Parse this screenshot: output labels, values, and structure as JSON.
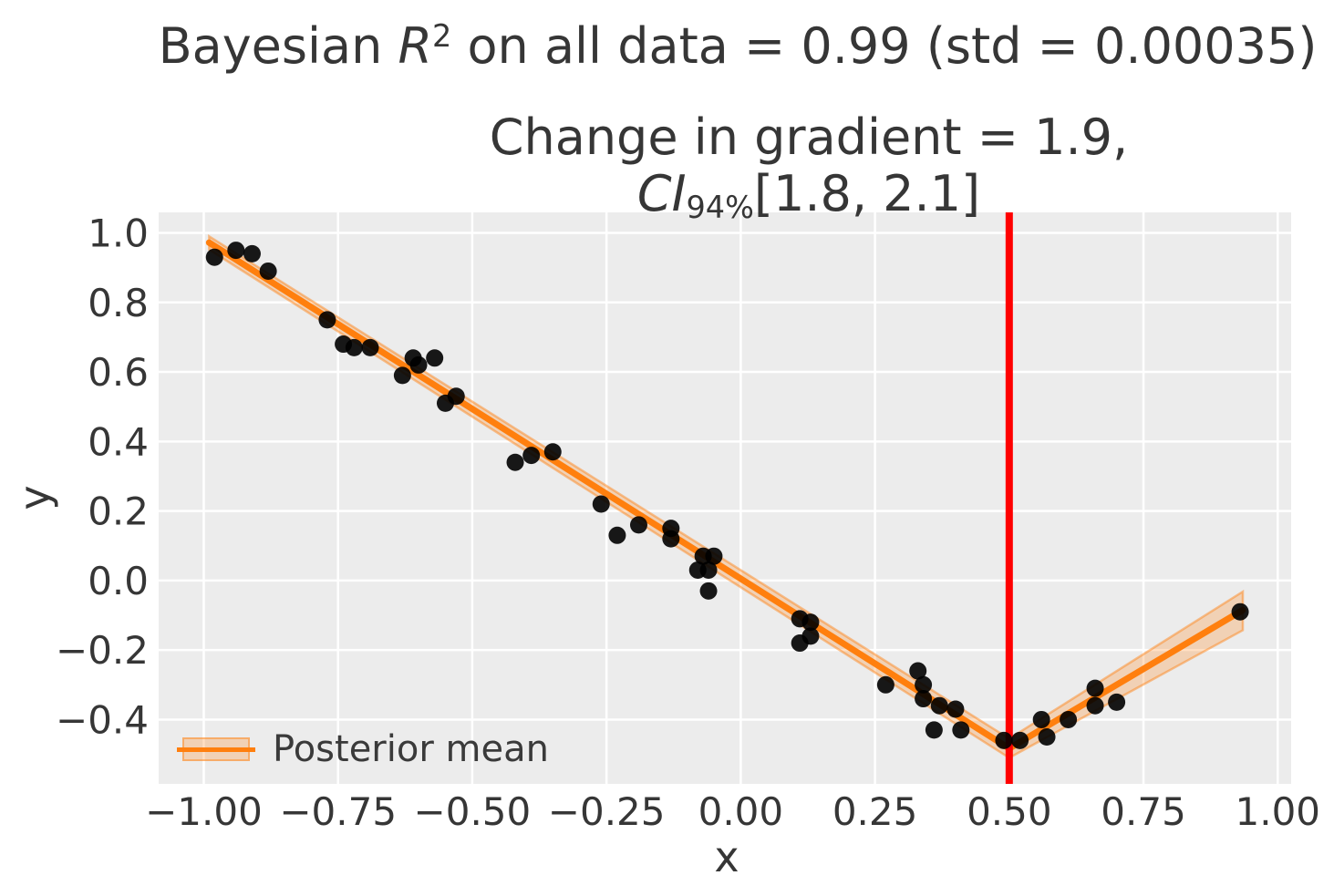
{
  "suptitle": {
    "prefix": "Bayesian ",
    "var": "R",
    "sup": "2",
    "suffix": " on all data = 0.99 (std = 0.00035)"
  },
  "axes_title": {
    "line1": "Change in gradient = 1.9,",
    "ci_var": "CI",
    "ci_sub": "94%",
    "ci_rest": "[1.8, 2.1]"
  },
  "legend": {
    "label": "Posterior mean"
  },
  "chart_data": {
    "type": "scatter",
    "title": "Bayesian R^2 on all data = 0.99 (std = 0.00035)",
    "subtitle": "Change in gradient = 1.9, CI_94% [1.8, 2.1]",
    "xlabel": "x",
    "ylabel": "y",
    "xlim": [
      -1.084,
      1.025
    ],
    "ylim": [
      -0.585,
      1.059
    ],
    "grid": true,
    "legend_position": "lower left",
    "background": "#ececec",
    "grid_color": "#ffffff",
    "text_color": "#363636",
    "x_ticks": {
      "values": [
        -1.0,
        -0.75,
        -0.5,
        -0.25,
        0.0,
        0.25,
        0.5,
        0.75,
        1.0
      ],
      "labels": [
        "−1.00",
        "−0.75",
        "−0.50",
        "−0.25",
        "0.00",
        "0.25",
        "0.50",
        "0.75",
        "1.00"
      ]
    },
    "y_ticks": {
      "values": [
        -0.4,
        -0.2,
        0.0,
        0.2,
        0.4,
        0.6,
        0.8,
        1.0
      ],
      "labels": [
        "−0.4",
        "−0.2",
        "0.0",
        "0.2",
        "0.4",
        "0.6",
        "0.8",
        "1.0"
      ]
    },
    "scatter": {
      "color": "#000000",
      "opacity": 0.9,
      "radius": 9.5,
      "points": [
        [
          -0.98,
          0.93
        ],
        [
          -0.94,
          0.95
        ],
        [
          -0.91,
          0.94
        ],
        [
          -0.88,
          0.89
        ],
        [
          -0.77,
          0.75
        ],
        [
          -0.74,
          0.68
        ],
        [
          -0.72,
          0.67
        ],
        [
          -0.69,
          0.67
        ],
        [
          -0.63,
          0.59
        ],
        [
          -0.61,
          0.64
        ],
        [
          -0.6,
          0.62
        ],
        [
          -0.57,
          0.64
        ],
        [
          -0.55,
          0.51
        ],
        [
          -0.53,
          0.53
        ],
        [
          -0.42,
          0.34
        ],
        [
          -0.39,
          0.36
        ],
        [
          -0.35,
          0.37
        ],
        [
          -0.26,
          0.22
        ],
        [
          -0.23,
          0.13
        ],
        [
          -0.19,
          0.16
        ],
        [
          -0.13,
          0.15
        ],
        [
          -0.13,
          0.12
        ],
        [
          -0.08,
          0.03
        ],
        [
          -0.07,
          0.07
        ],
        [
          -0.06,
          0.03
        ],
        [
          -0.05,
          0.07
        ],
        [
          -0.06,
          -0.03
        ],
        [
          0.11,
          -0.11
        ],
        [
          0.13,
          -0.12
        ],
        [
          0.13,
          -0.16
        ],
        [
          0.11,
          -0.18
        ],
        [
          0.27,
          -0.3
        ],
        [
          0.33,
          -0.26
        ],
        [
          0.34,
          -0.3
        ],
        [
          0.34,
          -0.34
        ],
        [
          0.37,
          -0.36
        ],
        [
          0.4,
          -0.37
        ],
        [
          0.36,
          -0.43
        ],
        [
          0.41,
          -0.43
        ],
        [
          0.49,
          -0.46
        ],
        [
          0.52,
          -0.46
        ],
        [
          0.56,
          -0.4
        ],
        [
          0.57,
          -0.45
        ],
        [
          0.61,
          -0.4
        ],
        [
          0.66,
          -0.31
        ],
        [
          0.66,
          -0.36
        ],
        [
          0.7,
          -0.35
        ],
        [
          0.93,
          -0.09
        ]
      ]
    },
    "posterior_mean": {
      "name": "Posterior mean",
      "color": "#ff7f0e",
      "line_width": 7,
      "points": [
        [
          -0.99,
          0.972
        ],
        [
          0.5,
          -0.483
        ],
        [
          0.935,
          -0.085
        ]
      ]
    },
    "ci_band": {
      "color": "#ff7f0e",
      "fill_opacity": 0.25,
      "edge_opacity": 0.45,
      "polygons": [
        [
          [
            -0.99,
            0.99
          ],
          [
            0.5,
            -0.455
          ],
          [
            0.5,
            -0.51
          ],
          [
            -0.99,
            0.952
          ]
        ],
        [
          [
            0.5,
            -0.455
          ],
          [
            0.935,
            -0.032
          ],
          [
            0.935,
            -0.143
          ],
          [
            0.5,
            -0.51
          ]
        ]
      ]
    },
    "changepoint": {
      "x": 0.5,
      "color": "#ff0000",
      "line_width": 8
    }
  }
}
